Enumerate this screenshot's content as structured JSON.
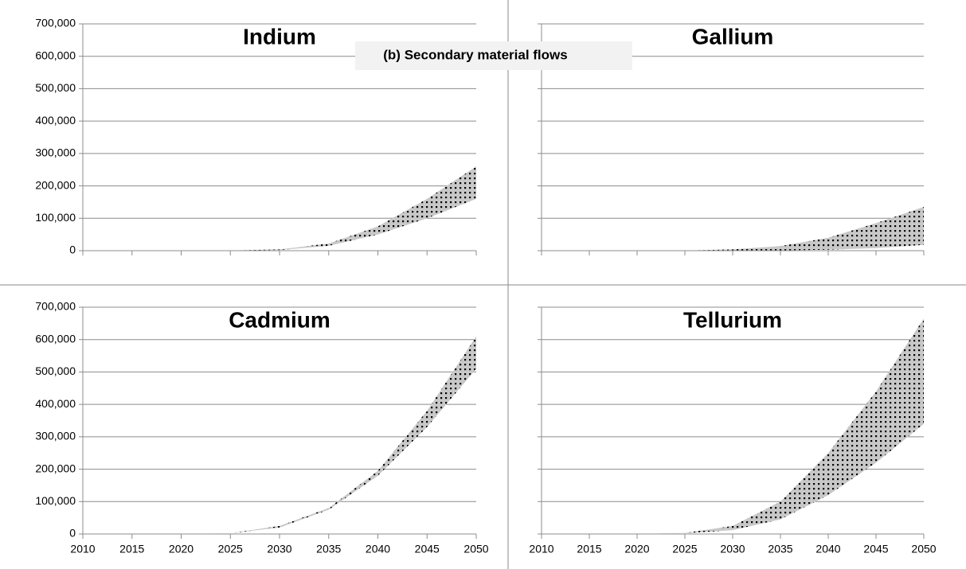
{
  "title": "(b) Secondary material flows",
  "chart_data": [
    {
      "type": "range-area",
      "title": "Indium",
      "fill": "#c8c8c8",
      "pattern": "dots",
      "x": [
        2010,
        2015,
        2020,
        2025,
        2030,
        2035,
        2040,
        2045,
        2050
      ],
      "series": [
        {
          "values": [
            0,
            0,
            0,
            0,
            2000,
            15000,
            50000,
            100000,
            160000
          ]
        },
        {
          "values": [
            0,
            0,
            0,
            500,
            4000,
            22000,
            75000,
            160000,
            260000
          ]
        }
      ],
      "xlim": [
        2010,
        2050
      ],
      "xticks": [
        2010,
        2015,
        2020,
        2025,
        2030,
        2035,
        2040,
        2045,
        2050
      ],
      "xtick_labels": false,
      "ylim": [
        0,
        700000
      ],
      "yticks": [
        0,
        {
          "value": 100000,
          "label": "100,000"
        },
        {
          "value": 200000,
          "label": "200,000"
        },
        {
          "value": 300000,
          "label": "300,000"
        },
        {
          "value": 400000,
          "label": "400,000"
        },
        {
          "value": 500000,
          "label": "500,000"
        },
        {
          "value": 600000,
          "label": "600,000"
        },
        {
          "value": 700000,
          "label": "700,000"
        }
      ],
      "ytick_labels": true,
      "grid": true
    },
    {
      "type": "range-area",
      "title": "Gallium",
      "fill": "#c8c8c8",
      "pattern": "dots",
      "x": [
        2010,
        2015,
        2020,
        2025,
        2030,
        2035,
        2040,
        2045,
        2050
      ],
      "series": [
        {
          "values": [
            0,
            0,
            0,
            0,
            0,
            1000,
            3000,
            8000,
            18000
          ]
        },
        {
          "values": [
            0,
            0,
            0,
            500,
            4000,
            14000,
            40000,
            85000,
            135000
          ]
        }
      ],
      "xlim": [
        2010,
        2050
      ],
      "xticks": [
        2010,
        2015,
        2020,
        2025,
        2030,
        2035,
        2040,
        2045,
        2050
      ],
      "xtick_labels": false,
      "ylim": [
        0,
        700000
      ],
      "yticks": [
        0,
        100000,
        200000,
        300000,
        400000,
        500000,
        600000,
        700000
      ],
      "ytick_labels": false,
      "grid": true
    },
    {
      "type": "range-area",
      "title": "Cadmium",
      "fill": "#c8c8c8",
      "pattern": "dots",
      "x": [
        2010,
        2015,
        2020,
        2025,
        2030,
        2035,
        2040,
        2045,
        2050
      ],
      "series": [
        {
          "values": [
            0,
            0,
            0,
            2000,
            20000,
            75000,
            180000,
            330000,
            510000
          ]
        },
        {
          "values": [
            0,
            0,
            0,
            2500,
            25000,
            80000,
            195000,
            380000,
            610000
          ]
        }
      ],
      "xlim": [
        2010,
        2050
      ],
      "xticks": [
        2010,
        2015,
        2020,
        2025,
        2030,
        2035,
        2040,
        2045,
        2050
      ],
      "xtick_labels": true,
      "ylim": [
        0,
        700000
      ],
      "yticks": [
        0,
        {
          "value": 100000,
          "label": "100,000"
        },
        {
          "value": 200000,
          "label": "200,000"
        },
        {
          "value": 300000,
          "label": "300,000"
        },
        {
          "value": 400000,
          "label": "400,000"
        },
        {
          "value": 500000,
          "label": "500,000"
        },
        {
          "value": 600000,
          "label": "600,000"
        },
        {
          "value": 700000,
          "label": "700,000"
        }
      ],
      "ytick_labels": true,
      "grid": true
    },
    {
      "type": "range-area",
      "title": "Tellurium",
      "fill": "#c8c8c8",
      "pattern": "dots",
      "x": [
        2010,
        2015,
        2020,
        2025,
        2030,
        2035,
        2040,
        2045,
        2050
      ],
      "series": [
        {
          "values": [
            0,
            0,
            0,
            2000,
            12000,
            45000,
            120000,
            220000,
            340000
          ]
        },
        {
          "values": [
            0,
            0,
            0,
            3000,
            25000,
            100000,
            250000,
            440000,
            665000
          ]
        }
      ],
      "xlim": [
        2010,
        2050
      ],
      "xticks": [
        2010,
        2015,
        2020,
        2025,
        2030,
        2035,
        2040,
        2045,
        2050
      ],
      "xtick_labels": true,
      "ylim": [
        0,
        700000
      ],
      "yticks": [
        0,
        100000,
        200000,
        300000,
        400000,
        500000,
        600000,
        700000
      ],
      "ytick_labels": false,
      "grid": true
    }
  ]
}
